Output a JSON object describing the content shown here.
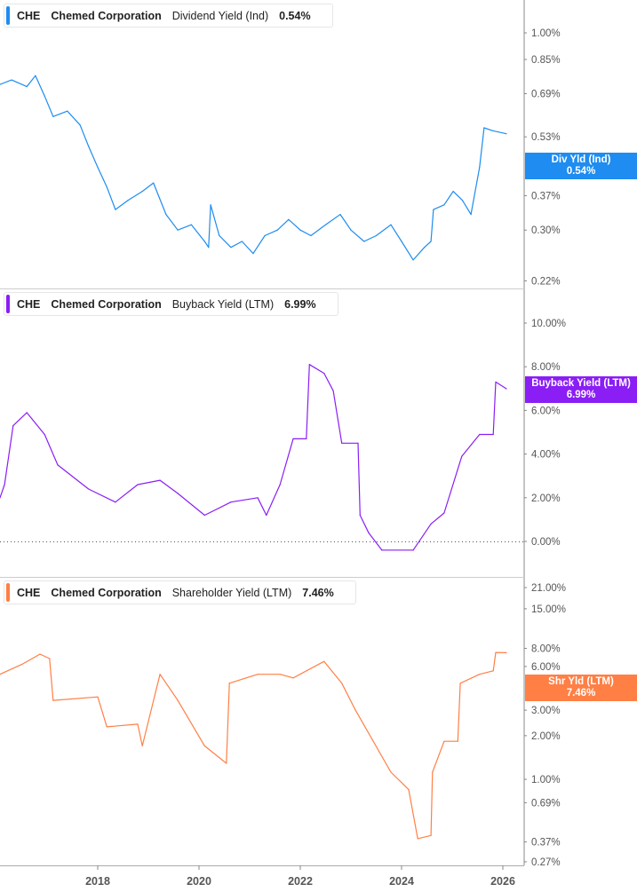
{
  "chart_data": [
    {
      "type": "line",
      "ticker": "CHE",
      "company": "Chemed Corporation",
      "metric": "Dividend Yield (Ind)",
      "last_value": "0.54%",
      "badge_label": "Div Yld (Ind)",
      "color": "#1e8cf0",
      "scale": "log",
      "y_ticks": [
        "1.00%",
        "0.85%",
        "0.69%",
        "0.53%",
        "0.37%",
        "0.30%",
        "0.22%"
      ],
      "x": [
        2016.07,
        2016.3,
        2016.6,
        2016.77,
        2016.95,
        2017.12,
        2017.4,
        2017.65,
        2017.82,
        2018.0,
        2018.18,
        2018.35,
        2018.6,
        2018.88,
        2019.1,
        2019.35,
        2019.58,
        2019.85,
        2020.11,
        2020.19,
        2020.23,
        2020.4,
        2020.63,
        2020.85,
        2021.07,
        2021.3,
        2021.55,
        2021.77,
        2022.0,
        2022.21,
        2022.5,
        2022.79,
        2023.0,
        2023.26,
        2023.5,
        2023.79,
        2024.0,
        2024.23,
        2024.45,
        2024.58,
        2024.63,
        2024.84,
        2025.02,
        2025.2,
        2025.37,
        2025.54,
        2025.63,
        2025.8,
        2026.07
      ],
      "values": [
        0.73,
        0.75,
        0.72,
        0.77,
        0.68,
        0.6,
        0.62,
        0.57,
        0.5,
        0.44,
        0.39,
        0.34,
        0.36,
        0.38,
        0.4,
        0.33,
        0.3,
        0.31,
        0.28,
        0.27,
        0.35,
        0.29,
        0.27,
        0.28,
        0.26,
        0.29,
        0.3,
        0.32,
        0.3,
        0.29,
        0.31,
        0.33,
        0.3,
        0.28,
        0.29,
        0.31,
        0.28,
        0.25,
        0.27,
        0.28,
        0.34,
        0.35,
        0.38,
        0.36,
        0.33,
        0.44,
        0.56,
        0.55,
        0.54
      ]
    },
    {
      "type": "line",
      "ticker": "CHE",
      "company": "Chemed Corporation",
      "metric": "Buyback Yield (LTM)",
      "last_value": "6.99%",
      "badge_label": "Buyback Yield (LTM)",
      "color": "#8a1ef5",
      "scale": "linear",
      "y_ticks": [
        "10.00%",
        "8.00%",
        "6.00%",
        "4.00%",
        "2.00%",
        "0.00%"
      ],
      "x": [
        2016.07,
        2016.16,
        2016.33,
        2016.6,
        2016.95,
        2017.21,
        2017.82,
        2018.35,
        2018.79,
        2019.23,
        2019.58,
        2020.11,
        2020.63,
        2021.16,
        2021.33,
        2021.6,
        2021.86,
        2022.12,
        2022.18,
        2022.47,
        2022.65,
        2022.82,
        2023.14,
        2023.18,
        2023.35,
        2023.61,
        2024.23,
        2024.58,
        2024.84,
        2025.19,
        2025.54,
        2025.81,
        2025.86,
        2026.07
      ],
      "values": [
        2.0,
        2.6,
        5.3,
        5.9,
        4.9,
        3.5,
        2.4,
        1.8,
        2.6,
        2.8,
        2.2,
        1.2,
        1.8,
        2.0,
        1.2,
        2.6,
        4.7,
        4.7,
        8.1,
        7.7,
        6.9,
        4.5,
        4.5,
        1.2,
        0.4,
        -0.4,
        -0.4,
        0.8,
        1.3,
        3.9,
        4.9,
        4.9,
        7.3,
        6.99
      ]
    },
    {
      "type": "line",
      "ticker": "CHE",
      "company": "Chemed Corporation",
      "metric": "Shareholder Yield (LTM)",
      "last_value": "7.46%",
      "badge_label": "Shr Yld (LTM)",
      "color": "#ff7f45",
      "scale": "log",
      "y_ticks": [
        "21.00%",
        "15.00%",
        "8.00%",
        "6.00%",
        "3.00%",
        "2.00%",
        "1.00%",
        "0.69%",
        "0.37%",
        "0.27%"
      ],
      "x": [
        2016.07,
        2016.5,
        2016.86,
        2017.05,
        2017.12,
        2018.0,
        2018.18,
        2018.79,
        2018.88,
        2019.23,
        2019.58,
        2020.11,
        2020.54,
        2020.6,
        2021.16,
        2021.6,
        2021.86,
        2022.47,
        2022.82,
        2023.09,
        2023.79,
        2024.14,
        2024.32,
        2024.58,
        2024.61,
        2024.84,
        2025.11,
        2025.16,
        2025.54,
        2025.81,
        2025.86,
        2026.07
      ],
      "values": [
        5.3,
        6.2,
        7.3,
        6.8,
        3.5,
        3.7,
        2.3,
        2.4,
        1.7,
        5.3,
        3.5,
        1.7,
        1.29,
        4.6,
        5.3,
        5.3,
        5.0,
        6.5,
        4.6,
        3.0,
        1.12,
        0.85,
        0.39,
        0.41,
        1.12,
        1.83,
        1.83,
        4.6,
        5.3,
        5.6,
        7.5,
        7.46
      ]
    }
  ],
  "x_axis": {
    "ticks": [
      "2018",
      "2020",
      "2022",
      "2024",
      "2026"
    ],
    "tick_years": [
      2018,
      2020,
      2022,
      2024,
      2026
    ],
    "range": [
      2016.07,
      2026.4
    ]
  }
}
